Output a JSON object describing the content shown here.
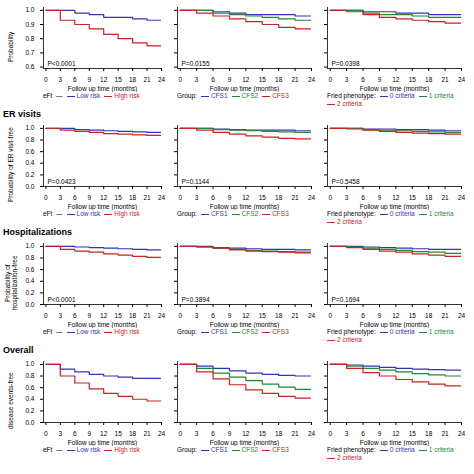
{
  "chart_data": [
    {
      "type": "step",
      "x": [
        0,
        3,
        6,
        9,
        12,
        15,
        18,
        21,
        24
      ],
      "series": [
        {
          "name": "Low risk",
          "color": "#3333bb",
          "values": [
            1.0,
            1.0,
            0.98,
            0.97,
            0.95,
            0.95,
            0.94,
            0.93,
            0.93
          ]
        },
        {
          "name": "High risk",
          "color": "#cc2222",
          "values": [
            1.0,
            0.93,
            0.9,
            0.87,
            0.83,
            0.8,
            0.77,
            0.75,
            0.73
          ]
        }
      ],
      "xlim": [
        -0.5,
        24
      ],
      "xticks": [
        0,
        3,
        6,
        9,
        12,
        15,
        18,
        21,
        24
      ],
      "ylim": [
        0.59,
        1.02
      ],
      "yticks": [
        0.6,
        0.7,
        0.8,
        0.9,
        {
          "value": 1.0,
          "label": "1.0"
        }
      ],
      "xlabel": "Follow up time (months)",
      "ylabel": "Probability",
      "legend_title": "eFt  —",
      "legend": "bottom",
      "annotations": [
        "P<0.0001"
      ]
    },
    {
      "type": "step",
      "x": [
        0,
        3,
        6,
        9,
        12,
        15,
        18,
        21,
        24
      ],
      "series": [
        {
          "name": "CFS1",
          "color": "#3333bb",
          "values": [
            1.0,
            1.0,
            0.99,
            0.98,
            0.97,
            0.97,
            0.97,
            0.96,
            0.96
          ]
        },
        {
          "name": "CFS2",
          "color": "#228833",
          "values": [
            1.0,
            1.0,
            0.98,
            0.97,
            0.96,
            0.95,
            0.94,
            0.93,
            0.93
          ]
        },
        {
          "name": "CFS3",
          "color": "#cc2222",
          "values": [
            1.0,
            0.98,
            0.96,
            0.94,
            0.92,
            0.9,
            0.88,
            0.87,
            0.86
          ]
        }
      ],
      "xlim": [
        -0.5,
        24
      ],
      "xticks": [
        0,
        3,
        6,
        9,
        12,
        15,
        18,
        21,
        24
      ],
      "ylim": [
        0.59,
        1.02
      ],
      "yticks": [
        0.6,
        0.7,
        0.8,
        0.9,
        {
          "value": 1.0,
          "label": "1.0"
        }
      ],
      "xlabel": "Follow up time (months)",
      "tick_labels": "x",
      "legend_title": "Group:",
      "legend": "bottom",
      "annotations": [
        "P=0.0155"
      ]
    },
    {
      "type": "step",
      "x": [
        0,
        3,
        6,
        9,
        12,
        15,
        18,
        21,
        24
      ],
      "series": [
        {
          "name": "0 criteria",
          "color": "#3333bb",
          "values": [
            1.0,
            1.0,
            0.99,
            0.99,
            0.98,
            0.98,
            0.97,
            0.97,
            0.97
          ]
        },
        {
          "name": "1 criteria",
          "color": "#228833",
          "values": [
            1.0,
            1.0,
            0.98,
            0.97,
            0.97,
            0.96,
            0.95,
            0.95,
            0.95
          ]
        },
        {
          "name": "2 criteria",
          "color": "#cc2222",
          "values": [
            1.0,
            0.99,
            0.97,
            0.95,
            0.94,
            0.93,
            0.92,
            0.91,
            0.91
          ]
        }
      ],
      "xlim": [
        -0.5,
        24
      ],
      "xticks": [
        0,
        3,
        6,
        9,
        12,
        15,
        18,
        21,
        24
      ],
      "ylim": [
        0.59,
        1.02
      ],
      "yticks": [
        0.6,
        0.7,
        0.8,
        0.9,
        {
          "value": 1.0,
          "label": "1.0"
        }
      ],
      "xlabel": "Follow up time (months)",
      "tick_labels": "x",
      "legend_title": "Fried phenotype:",
      "legend": "bottom",
      "annotations": [
        "P=0.0398"
      ]
    },
    {
      "type": "step",
      "title": "ER visits",
      "x": [
        0,
        3,
        6,
        9,
        12,
        15,
        18,
        21,
        24
      ],
      "series": [
        {
          "name": "Low risk",
          "color": "#3333bb",
          "values": [
            1.0,
            1.0,
            0.98,
            0.97,
            0.96,
            0.95,
            0.94,
            0.93,
            0.92
          ]
        },
        {
          "name": "High risk",
          "color": "#cc2222",
          "values": [
            1.0,
            0.97,
            0.95,
            0.93,
            0.91,
            0.9,
            0.89,
            0.88,
            0.87
          ]
        }
      ],
      "xlim": [
        -0.5,
        24
      ],
      "xticks": [
        0,
        3,
        6,
        9,
        12,
        15,
        18,
        21,
        24
      ],
      "ylim": [
        0.0,
        1.05
      ],
      "yticks": [
        {
          "value": 0.0,
          "label": "0.0"
        },
        0.2,
        0.4,
        0.6,
        0.8,
        {
          "value": 1.0,
          "label": "1.0"
        }
      ],
      "xlabel": "Follow up time (months)",
      "ylabel": "Probability of ER visit-free",
      "legend_title": "eFt  —",
      "legend": "bottom",
      "annotations": [
        "P=0.0423"
      ]
    },
    {
      "type": "step",
      "x": [
        0,
        3,
        6,
        9,
        12,
        15,
        18,
        21,
        24
      ],
      "series": [
        {
          "name": "CFS1",
          "color": "#3333bb",
          "values": [
            1.0,
            1.0,
            0.99,
            0.98,
            0.97,
            0.97,
            0.97,
            0.96,
            0.96
          ]
        },
        {
          "name": "CFS2",
          "color": "#228833",
          "values": [
            1.0,
            1.0,
            0.98,
            0.97,
            0.96,
            0.95,
            0.94,
            0.93,
            0.93
          ]
        },
        {
          "name": "CFS3",
          "color": "#cc2222",
          "values": [
            1.0,
            0.97,
            0.93,
            0.9,
            0.87,
            0.85,
            0.83,
            0.82,
            0.8
          ]
        }
      ],
      "xlim": [
        -0.5,
        24
      ],
      "xticks": [
        0,
        3,
        6,
        9,
        12,
        15,
        18,
        21,
        24
      ],
      "ylim": [
        0.0,
        1.05
      ],
      "yticks": [
        {
          "value": 0.0,
          "label": "0.0"
        },
        0.2,
        0.4,
        0.6,
        0.8,
        {
          "value": 1.0,
          "label": "1.0"
        }
      ],
      "xlabel": "Follow up time (months)",
      "tick_labels": "x",
      "legend_title": "Group:",
      "legend": "bottom",
      "annotations": [
        "P=0.1144"
      ]
    },
    {
      "type": "step",
      "x": [
        0,
        3,
        6,
        9,
        12,
        15,
        18,
        21,
        24
      ],
      "series": [
        {
          "name": "0 criteria",
          "color": "#3333bb",
          "values": [
            1.0,
            1.0,
            0.99,
            0.99,
            0.98,
            0.98,
            0.97,
            0.96,
            0.96
          ]
        },
        {
          "name": "1 criteria",
          "color": "#228833",
          "values": [
            1.0,
            1.0,
            0.98,
            0.97,
            0.96,
            0.95,
            0.94,
            0.93,
            0.93
          ]
        },
        {
          "name": "2 criteria",
          "color": "#cc2222",
          "values": [
            1.0,
            0.99,
            0.97,
            0.95,
            0.93,
            0.92,
            0.91,
            0.9,
            0.9
          ]
        }
      ],
      "xlim": [
        -0.5,
        24
      ],
      "xticks": [
        0,
        3,
        6,
        9,
        12,
        15,
        18,
        21,
        24
      ],
      "ylim": [
        0.0,
        1.05
      ],
      "yticks": [
        {
          "value": 0.0,
          "label": "0.0"
        },
        0.2,
        0.4,
        0.6,
        0.8,
        {
          "value": 1.0,
          "label": "1.0"
        }
      ],
      "xlabel": "Follow up time (months)",
      "tick_labels": "x",
      "legend_title": "Fried phenotype:",
      "legend": "bottom",
      "annotations": [
        "P=0.5458"
      ]
    },
    {
      "type": "step",
      "title": "Hospitalizations",
      "x": [
        0,
        3,
        6,
        9,
        12,
        15,
        18,
        21,
        24
      ],
      "series": [
        {
          "name": "Low risk",
          "color": "#3333bb",
          "values": [
            1.0,
            1.0,
            0.99,
            0.98,
            0.97,
            0.96,
            0.95,
            0.94,
            0.93
          ]
        },
        {
          "name": "High risk",
          "color": "#cc2222",
          "values": [
            1.0,
            0.95,
            0.92,
            0.9,
            0.87,
            0.85,
            0.83,
            0.81,
            0.79
          ]
        }
      ],
      "xlim": [
        -0.5,
        24
      ],
      "xticks": [
        0,
        3,
        6,
        9,
        12,
        15,
        18,
        21,
        24
      ],
      "ylim": [
        0.0,
        1.05
      ],
      "yticks": [
        {
          "value": 0.0,
          "label": "0.0"
        },
        0.2,
        0.4,
        0.6,
        0.8,
        {
          "value": 1.0,
          "label": "1.0"
        }
      ],
      "xlabel": "Follow up time (months)",
      "ylabel": "Probability of\nhospitalization-free",
      "legend_title": "eFt  —",
      "legend": "bottom",
      "annotations": [
        "P<0.0001"
      ]
    },
    {
      "type": "step",
      "x": [
        0,
        3,
        6,
        9,
        12,
        15,
        18,
        21,
        24
      ],
      "series": [
        {
          "name": "CFS1",
          "color": "#3333bb",
          "values": [
            1.0,
            1.0,
            0.98,
            0.97,
            0.96,
            0.95,
            0.95,
            0.94,
            0.94
          ]
        },
        {
          "name": "CFS2",
          "color": "#228833",
          "values": [
            1.0,
            0.99,
            0.97,
            0.95,
            0.93,
            0.92,
            0.91,
            0.9,
            0.9
          ]
        },
        {
          "name": "CFS3",
          "color": "#cc2222",
          "values": [
            1.0,
            0.99,
            0.97,
            0.94,
            0.92,
            0.91,
            0.9,
            0.89,
            0.88
          ]
        }
      ],
      "xlim": [
        -0.5,
        24
      ],
      "xticks": [
        0,
        3,
        6,
        9,
        12,
        15,
        18,
        21,
        24
      ],
      "ylim": [
        0.0,
        1.05
      ],
      "yticks": [
        {
          "value": 0.0,
          "label": "0.0"
        },
        0.2,
        0.4,
        0.6,
        0.8,
        {
          "value": 1.0,
          "label": "1.0"
        }
      ],
      "xlabel": "Follow up time (months)",
      "tick_labels": "x",
      "legend_title": "Group:",
      "legend": "bottom",
      "annotations": [
        "P=0.3894"
      ]
    },
    {
      "type": "step",
      "x": [
        0,
        3,
        6,
        9,
        12,
        15,
        18,
        21,
        24
      ],
      "series": [
        {
          "name": "0 criteria",
          "color": "#3333bb",
          "values": [
            1.0,
            1.0,
            0.99,
            0.98,
            0.97,
            0.96,
            0.95,
            0.95,
            0.95
          ]
        },
        {
          "name": "1 criteria",
          "color": "#228833",
          "values": [
            1.0,
            0.99,
            0.97,
            0.95,
            0.93,
            0.91,
            0.9,
            0.88,
            0.87
          ]
        },
        {
          "name": "2 criteria",
          "color": "#cc2222",
          "values": [
            1.0,
            0.98,
            0.95,
            0.92,
            0.9,
            0.87,
            0.85,
            0.83,
            0.82
          ]
        }
      ],
      "xlim": [
        -0.5,
        24
      ],
      "xticks": [
        0,
        3,
        6,
        9,
        12,
        15,
        18,
        21,
        24
      ],
      "ylim": [
        0.0,
        1.05
      ],
      "yticks": [
        {
          "value": 0.0,
          "label": "0.0"
        },
        0.2,
        0.4,
        0.6,
        0.8,
        {
          "value": 1.0,
          "label": "1.0"
        }
      ],
      "xlabel": "Follow up time (months)",
      "tick_labels": "x",
      "legend_title": "Fried phenotype:",
      "legend": "bottom",
      "annotations": [
        "P=0.1694"
      ]
    },
    {
      "type": "step",
      "title": "Overall",
      "x": [
        0,
        3,
        6,
        9,
        12,
        15,
        18,
        21,
        24
      ],
      "series": [
        {
          "name": "Low risk",
          "color": "#3333bb",
          "values": [
            1.0,
            0.92,
            0.87,
            0.83,
            0.8,
            0.78,
            0.76,
            0.76,
            0.75
          ]
        },
        {
          "name": "High risk",
          "color": "#cc2222",
          "values": [
            1.0,
            0.8,
            0.68,
            0.58,
            0.5,
            0.45,
            0.4,
            0.37,
            0.35
          ]
        }
      ],
      "xlim": [
        -0.5,
        24
      ],
      "xticks": [
        0,
        3,
        6,
        9,
        12,
        15,
        18,
        21,
        24
      ],
      "ylim": [
        0.0,
        1.05
      ],
      "yticks": [
        {
          "value": 0.0,
          "label": "0.0"
        },
        0.2,
        0.4,
        0.6,
        0.8,
        {
          "value": 1.0,
          "label": "1.0"
        }
      ],
      "xlabel": "Follow up time (months)",
      "ylabel": "disease events-free",
      "legend_title": "eFt  —",
      "legend": "bottom"
    },
    {
      "type": "step",
      "x": [
        0,
        3,
        6,
        9,
        12,
        15,
        18,
        21,
        24
      ],
      "series": [
        {
          "name": "CFS1",
          "color": "#3333bb",
          "values": [
            1.0,
            0.97,
            0.93,
            0.89,
            0.85,
            0.83,
            0.81,
            0.8,
            0.8
          ]
        },
        {
          "name": "CFS2",
          "color": "#228833",
          "values": [
            1.0,
            0.93,
            0.85,
            0.78,
            0.72,
            0.66,
            0.61,
            0.57,
            0.55
          ]
        },
        {
          "name": "CFS3",
          "color": "#cc2222",
          "values": [
            1.0,
            0.87,
            0.75,
            0.65,
            0.56,
            0.5,
            0.45,
            0.42,
            0.4
          ]
        }
      ],
      "xlim": [
        -0.5,
        24
      ],
      "xticks": [
        0,
        3,
        6,
        9,
        12,
        15,
        18,
        21,
        24
      ],
      "ylim": [
        0.0,
        1.05
      ],
      "yticks": [
        {
          "value": 0.0,
          "label": "0.0"
        },
        0.2,
        0.4,
        0.6,
        0.8,
        {
          "value": 1.0,
          "label": "1.0"
        }
      ],
      "xlabel": "Follow up time (months)",
      "tick_labels": "x",
      "legend_title": "Group:",
      "legend": "bottom"
    },
    {
      "type": "step",
      "x": [
        0,
        3,
        6,
        9,
        12,
        15,
        18,
        21,
        24
      ],
      "series": [
        {
          "name": "0 criteria",
          "color": "#3333bb",
          "values": [
            1.0,
            0.99,
            0.97,
            0.95,
            0.93,
            0.92,
            0.91,
            0.9,
            0.9
          ]
        },
        {
          "name": "1 criteria",
          "color": "#228833",
          "values": [
            1.0,
            0.97,
            0.93,
            0.9,
            0.87,
            0.84,
            0.82,
            0.8,
            0.79
          ]
        },
        {
          "name": "2 criteria",
          "color": "#cc2222",
          "values": [
            1.0,
            0.93,
            0.86,
            0.8,
            0.74,
            0.7,
            0.66,
            0.63,
            0.61
          ]
        }
      ],
      "xlim": [
        -0.5,
        24
      ],
      "xticks": [
        0,
        3,
        6,
        9,
        12,
        15,
        18,
        21,
        24
      ],
      "ylim": [
        0.0,
        1.05
      ],
      "yticks": [
        {
          "value": 0.0,
          "label": "0.0"
        },
        0.2,
        0.4,
        0.6,
        0.8,
        {
          "value": 1.0,
          "label": "1.0"
        }
      ],
      "xlabel": "Follow up time (months)",
      "tick_labels": "x",
      "legend_title": "Fried phenotype:",
      "legend": "bottom"
    }
  ]
}
